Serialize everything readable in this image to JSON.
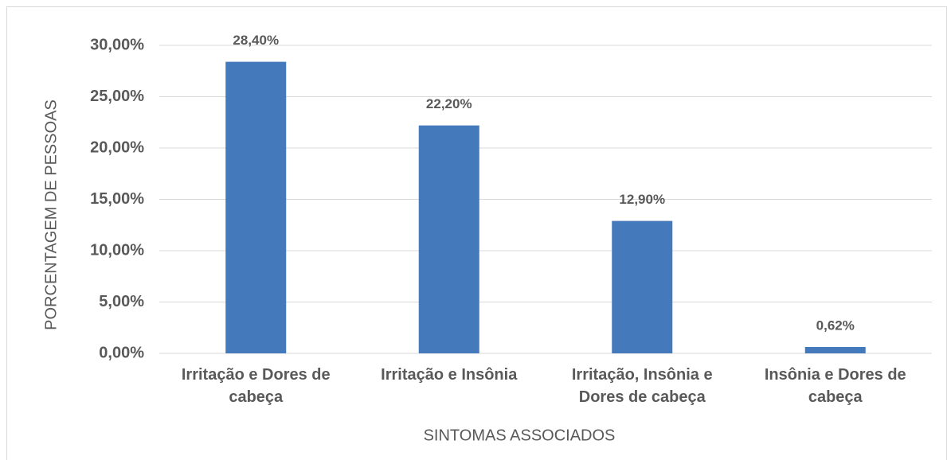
{
  "chart_data": {
    "type": "bar",
    "x_label": "SINTOMAS ASSOCIADOS",
    "y_label": "PORCENTAGEM DE PESSOAS",
    "categories": [
      "Irritação e Dores de cabeça",
      "Irritação e Insônia",
      "Irritação, Insônia e Dores de cabeça",
      "Insônia e Dores de cabeça"
    ],
    "values": [
      28.4,
      22.2,
      12.9,
      0.62
    ],
    "value_labels": [
      "28,40%",
      "22,20%",
      "12,90%",
      "0,62%"
    ],
    "color": "#4479bb",
    "ylim": [
      0,
      30
    ],
    "yticks": [
      {
        "value": 0,
        "label": "0,00%"
      },
      {
        "value": 5,
        "label": "5,00%"
      },
      {
        "value": 10,
        "label": "10,00%"
      },
      {
        "value": 15,
        "label": "15,00%"
      },
      {
        "value": 20,
        "label": "20,00%"
      },
      {
        "value": 25,
        "label": "25,00%"
      },
      {
        "value": 30,
        "label": "30,00%"
      }
    ],
    "grid": true
  }
}
